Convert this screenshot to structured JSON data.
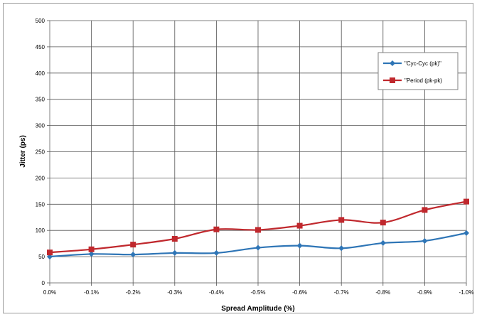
{
  "chart_data": {
    "type": "line",
    "title": "",
    "xlabel": "Spread Amplitude (%)",
    "ylabel": "Jitter (ps)",
    "categories": [
      "0.0%",
      "-0.1%",
      "-0.2%",
      "-0.3%",
      "-0.4%",
      "-0.5%",
      "-0.6%",
      "-0.7%",
      "-0.8%",
      "-0.9%",
      "-1.0%"
    ],
    "ylim": [
      0,
      500
    ],
    "yticks": [
      0,
      50,
      100,
      150,
      200,
      250,
      300,
      350,
      400,
      450,
      500
    ],
    "grid": true,
    "legend_position": "top-right",
    "series": [
      {
        "name": "\"Cyc-Cyc (pk)\"",
        "color": "#2E75B6",
        "marker": "diamond",
        "values": [
          50,
          55,
          54,
          57,
          57,
          67,
          71,
          66,
          76,
          80,
          95
        ]
      },
      {
        "name": "\"Period (pk-pk)",
        "color": "#C0282D",
        "marker": "square",
        "values": [
          58,
          64,
          73,
          84,
          102,
          101,
          109,
          120,
          115,
          139,
          155
        ]
      }
    ]
  }
}
